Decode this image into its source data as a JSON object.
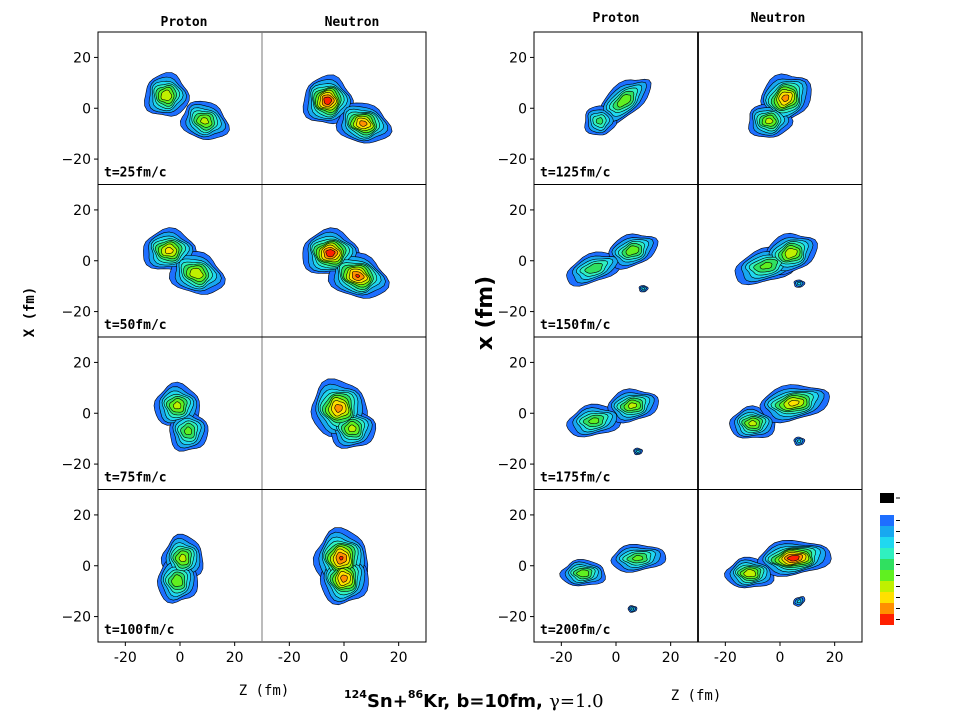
{
  "chart_data": {
    "type": "contour",
    "title": {
      "projectile_mass": "124",
      "projectile": "Sn+",
      "target_mass": "86",
      "target": "Kr, b=10fm, ",
      "gamma": "γ=1.0"
    },
    "xlabel_left": "Z (fm)",
    "xlabel_right": "Z (fm)",
    "ylabel_left": "X (fm)",
    "ylabel_right": "x (fm)",
    "xlim": [
      -30,
      30
    ],
    "ylim": [
      -30,
      30
    ],
    "xticks": [
      -20,
      0,
      20
    ],
    "yticks": [
      20,
      0,
      -20
    ],
    "xtick_labels": [
      "-20",
      "0",
      "20"
    ],
    "ytick_labels": [
      "20",
      "0",
      "−20"
    ],
    "columns": [
      "Proton",
      "Neutron"
    ],
    "legend_colors": [
      "#000000",
      "#1e6fff",
      "#18a8f0",
      "#20d8f0",
      "#30f0c0",
      "#30e060",
      "#60f020",
      "#c0f000",
      "#ffe000",
      "#ff9000",
      "#ff2000"
    ],
    "contour_colors": [
      "#1e6fff",
      "#18a8f0",
      "#20d8f0",
      "#30f0c0",
      "#30e060",
      "#60f020",
      "#c0f000",
      "#ffe000",
      "#ff9000",
      "#ff2000"
    ],
    "panels_left": [
      {
        "time": "t=25fm/c",
        "proton": [
          {
            "x": -5,
            "y": 5,
            "sx": 3.8,
            "sy": 4.0,
            "rot": 0,
            "peak": 0.75
          },
          {
            "x": 9,
            "y": -5,
            "sx": 4.2,
            "sy": 3.5,
            "rot": -20,
            "peak": 0.7
          }
        ],
        "neutron": [
          {
            "x": -6,
            "y": 3,
            "sx": 4.0,
            "sy": 4.2,
            "rot": 0,
            "peak": 1.0
          },
          {
            "x": 7,
            "y": -6,
            "sx": 4.5,
            "sy": 3.5,
            "rot": -15,
            "peak": 0.9
          }
        ]
      },
      {
        "time": "t=50fm/c",
        "proton": [
          {
            "x": -4,
            "y": 4,
            "sx": 4.5,
            "sy": 3.8,
            "rot": 0,
            "peak": 0.8
          },
          {
            "x": 6,
            "y": -5,
            "sx": 4.8,
            "sy": 3.8,
            "rot": -20,
            "peak": 0.75
          }
        ],
        "neutron": [
          {
            "x": -5,
            "y": 3,
            "sx": 4.6,
            "sy": 4.0,
            "rot": 0,
            "peak": 1.0
          },
          {
            "x": 5,
            "y": -6,
            "sx": 5.0,
            "sy": 3.8,
            "rot": -20,
            "peak": 0.95
          }
        ]
      },
      {
        "time": "t=75fm/c",
        "proton": [
          {
            "x": -1,
            "y": 3,
            "sx": 4.0,
            "sy": 4.0,
            "rot": 0,
            "peak": 0.7
          },
          {
            "x": 3,
            "y": -7,
            "sx": 3.5,
            "sy": 4.0,
            "rot": 0,
            "peak": 0.6
          }
        ],
        "neutron": [
          {
            "x": -2,
            "y": 2,
            "sx": 4.6,
            "sy": 5.0,
            "rot": 20,
            "peak": 0.9
          },
          {
            "x": 3,
            "y": -6,
            "sx": 4.0,
            "sy": 3.8,
            "rot": 0,
            "peak": 0.7
          }
        ]
      },
      {
        "time": "t=100fm/c",
        "proton": [
          {
            "x": 1,
            "y": 3,
            "sx": 3.6,
            "sy": 4.2,
            "rot": 0,
            "peak": 0.7
          },
          {
            "x": -1,
            "y": -6,
            "sx": 3.6,
            "sy": 4.2,
            "rot": 0,
            "peak": 0.65
          }
        ],
        "neutron": [
          {
            "x": -1,
            "y": 3,
            "sx": 4.4,
            "sy": 5.0,
            "rot": 0,
            "peak": 0.95
          },
          {
            "x": 0,
            "y": -5,
            "sx": 4.0,
            "sy": 4.6,
            "rot": 0,
            "peak": 0.9
          }
        ]
      }
    ],
    "panels_right": [
      {
        "time": "t=125fm/c",
        "proton": [
          {
            "x": 3,
            "y": 3,
            "sx": 5.5,
            "sy": 3.0,
            "rot": 40,
            "peak": 0.65
          },
          {
            "x": -6,
            "y": -5,
            "sx": 3.0,
            "sy": 3.0,
            "rot": 0,
            "peak": 0.5
          }
        ],
        "neutron": [
          {
            "x": 2,
            "y": 4,
            "sx": 4.5,
            "sy": 4.0,
            "rot": 40,
            "peak": 0.9
          },
          {
            "x": -4,
            "y": -5,
            "sx": 3.8,
            "sy": 3.2,
            "rot": 0,
            "peak": 0.7
          }
        ]
      },
      {
        "time": "t=150fm/c",
        "proton": [
          {
            "x": -8,
            "y": -3,
            "sx": 5.5,
            "sy": 2.8,
            "rot": 20,
            "peak": 0.55
          },
          {
            "x": 6,
            "y": 4,
            "sx": 4.5,
            "sy": 3.0,
            "rot": 20,
            "peak": 0.65
          },
          {
            "x": 10,
            "y": -11,
            "sx": 1.0,
            "sy": 0.8,
            "rot": 0,
            "peak": 0.3
          }
        ],
        "neutron": [
          {
            "x": -5,
            "y": -2,
            "sx": 6.0,
            "sy": 3.2,
            "rot": 15,
            "peak": 0.6
          },
          {
            "x": 4,
            "y": 3,
            "sx": 4.5,
            "sy": 3.5,
            "rot": 20,
            "peak": 0.75
          },
          {
            "x": 7,
            "y": -9,
            "sx": 1.2,
            "sy": 0.9,
            "rot": 0,
            "peak": 0.3
          }
        ]
      },
      {
        "time": "t=175fm/c",
        "proton": [
          {
            "x": -8,
            "y": -3,
            "sx": 5.0,
            "sy": 3.0,
            "rot": 10,
            "peak": 0.6
          },
          {
            "x": 6,
            "y": 3,
            "sx": 4.5,
            "sy": 3.0,
            "rot": 10,
            "peak": 0.7
          },
          {
            "x": 8,
            "y": -15,
            "sx": 1.0,
            "sy": 0.8,
            "rot": 0,
            "peak": 0.3
          }
        ],
        "neutron": [
          {
            "x": -10,
            "y": -4,
            "sx": 4.0,
            "sy": 3.0,
            "rot": 0,
            "peak": 0.7
          },
          {
            "x": 5,
            "y": 4,
            "sx": 6.0,
            "sy": 3.2,
            "rot": 10,
            "peak": 0.8
          },
          {
            "x": 7,
            "y": -11,
            "sx": 1.2,
            "sy": 1.0,
            "rot": 0,
            "peak": 0.3
          }
        ]
      },
      {
        "time": "t=200fm/c",
        "proton": [
          {
            "x": -12,
            "y": -3,
            "sx": 4.0,
            "sy": 2.5,
            "rot": 0,
            "peak": 0.65
          },
          {
            "x": 8,
            "y": 3,
            "sx": 5.0,
            "sy": 2.6,
            "rot": 5,
            "peak": 0.6
          },
          {
            "x": 6,
            "y": -17,
            "sx": 1.0,
            "sy": 0.8,
            "rot": 0,
            "peak": 0.3
          }
        ],
        "neutron": [
          {
            "x": -11,
            "y": -3,
            "sx": 4.2,
            "sy": 2.8,
            "rot": 0,
            "peak": 0.75
          },
          {
            "x": 5,
            "y": 3,
            "sx": 6.0,
            "sy": 3.0,
            "rot": 5,
            "peak": 1.0
          },
          {
            "x": 7,
            "y": -14,
            "sx": 1.4,
            "sy": 1.0,
            "rot": 30,
            "peak": 0.3
          }
        ]
      }
    ]
  }
}
